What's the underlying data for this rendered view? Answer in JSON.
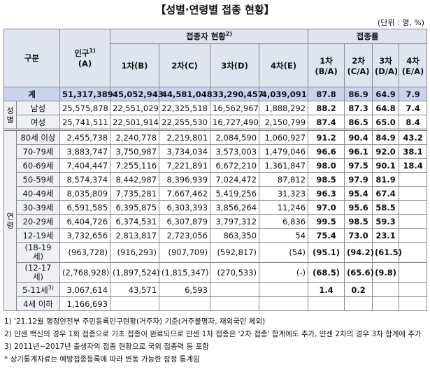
{
  "title": "【성별·연령별 접종 현황】",
  "unit": "(단위 : 명, %)",
  "header": {
    "group": "구분",
    "population": "인구",
    "population_note": "1)",
    "population_sub": "(A)",
    "vaccinated": "접종자 현황",
    "vaccinated_note": "2)",
    "rate": "접종률",
    "doses": [
      "1차(B)",
      "2차(C)",
      "3차(D)",
      "4차(E)"
    ],
    "rates": [
      [
        "1차",
        "(B/A)"
      ],
      [
        "2차",
        "(C/A)"
      ],
      [
        "3차",
        "(D/A)"
      ],
      [
        "4차",
        "(E/A)"
      ]
    ]
  },
  "total": {
    "label": "계",
    "values": [
      "51,317,389",
      "45,052,943",
      "44,581,048",
      "33,290,457",
      "4,039,091",
      "87.8",
      "86.9",
      "64.9",
      "7.9"
    ]
  },
  "sex": {
    "label": "성별",
    "rows": [
      {
        "label": "남성",
        "values": [
          "25,575,878",
          "22,551,029",
          "22,325,518",
          "16,562,967",
          "1,888,292",
          "88.2",
          "87.3",
          "64.8",
          "7.4"
        ]
      },
      {
        "label": "여성",
        "values": [
          "25,741,511",
          "22,501,914",
          "22,255,530",
          "16,727,490",
          "2,150,799",
          "87.4",
          "86.5",
          "65.0",
          "8.4"
        ]
      }
    ]
  },
  "age": {
    "label": "연령",
    "rows": [
      {
        "label": [
          "80세 이상"
        ],
        "values": [
          "2,455,738",
          "2,240,778",
          "2,219,801",
          "2,084,590",
          "1,060,927",
          "91.2",
          "90.4",
          "84.9",
          "43.2"
        ]
      },
      {
        "label": [
          "70-79세"
        ],
        "values": [
          "3,883,747",
          "3,750,987",
          "3,734,034",
          "3,573,003",
          "1,479,046",
          "96.6",
          "96.1",
          "92.0",
          "38.1"
        ]
      },
      {
        "label": [
          "60-69세"
        ],
        "values": [
          "7,404,447",
          "7,255,116",
          "7,221,891",
          "6,672,210",
          "1,361,847",
          "98.0",
          "97.5",
          "90.1",
          "18.4"
        ]
      },
      {
        "label": [
          "50-59세"
        ],
        "values": [
          "8,574,374",
          "8,442,987",
          "8,396,939",
          "7,024,472",
          "87,812",
          "98.5",
          "97.9",
          "81.9",
          null
        ]
      },
      {
        "label": [
          "40-49세"
        ],
        "values": [
          "8,035,809",
          "7,735,281",
          "7,667,462",
          "5,419,256",
          "31,323",
          "96.3",
          "95.4",
          "67.4",
          null
        ]
      },
      {
        "label": [
          "30-39세"
        ],
        "values": [
          "6,591,585",
          "6,395,875",
          "6,303,393",
          "3,856,264",
          "11,246",
          "97.0",
          "95.6",
          "58.5",
          null
        ]
      },
      {
        "label": [
          "20-29세"
        ],
        "values": [
          "6,404,726",
          "6,374,531",
          "6,307,879",
          "3,797,312",
          "6,836",
          "99.5",
          "98.5",
          "59.3",
          null
        ]
      },
      {
        "label": [
          "12-19세"
        ],
        "values": [
          "3,732,656",
          "2,813,817",
          "2,723,056",
          "863,350",
          "54",
          "75.4",
          "73.0",
          "23.1",
          null
        ]
      },
      {
        "label": [
          "(18-19",
          "세)"
        ],
        "values": [
          "(963,728)",
          "(916,293)",
          "(907,709)",
          "(592,817)",
          "(54)",
          "(95.1)",
          "(94.2)",
          "(61.5)",
          null
        ]
      },
      {
        "label": [
          "(12-17",
          "세)"
        ],
        "values": [
          "(2,768,928)",
          "(1,897,524)",
          "(1,815,347)",
          "(270,533)",
          "(-)",
          "(68.5)",
          "(65.6)",
          "(9.8)",
          null
        ]
      },
      {
        "label": [
          "5-11세"
        ],
        "note": "3)",
        "values": [
          "3,067,614",
          "43,571",
          "6,593",
          null,
          null,
          "1.4",
          "0.2",
          null,
          null
        ]
      },
      {
        "label": [
          "4세 이하"
        ],
        "values": [
          "1,166,693",
          null,
          null,
          null,
          null,
          null,
          null,
          null,
          null
        ]
      }
    ]
  },
  "footnotes": [
    "1) '21.12월 행정안전부 주민등록인구현황(거주자) 기준(거주불명자, 재외국민 제외)",
    "2) 얀센 백신의 경우 1회 접종으로 기초 접종이 완료되므로 얀센 1차 접종은 '2차 접종' 합계에도 추가, 얀센 2차의 경우 3차 합계에 추가",
    "3) 2011년~2017년 출생자의 접종 현황으로 국외 접종력 등 포함",
    "* 상기통계자료는 예방접종등록에 따라 변동 가능한 잠정 통계임"
  ]
}
